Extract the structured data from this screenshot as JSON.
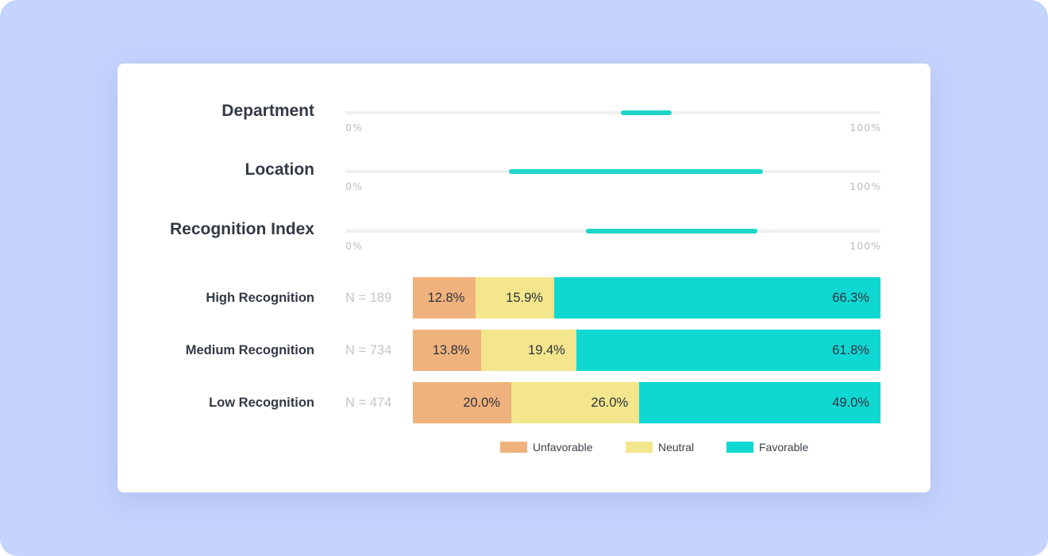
{
  "colors": {
    "background": "#c5d4fd",
    "card": "#ffffff",
    "range_fill": "#1fd5c9",
    "track": "#eff0f2",
    "unfavorable": "#f0b27c",
    "neutral": "#f3e68c",
    "favorable": "#0fd8d3"
  },
  "chart_data": [
    {
      "type": "range",
      "xlim": [
        0,
        100
      ],
      "tick_labels": [
        "0%",
        "100%"
      ],
      "rows": [
        {
          "label": "Department",
          "min": 51.5,
          "max": 61
        },
        {
          "label": "Location",
          "min": 30.5,
          "max": 78
        },
        {
          "label": "Recognition Index",
          "min": 45,
          "max": 77
        }
      ]
    },
    {
      "type": "bar",
      "stacked": true,
      "orientation": "horizontal",
      "categories": [
        "High Recognition",
        "Medium Recognition",
        "Low Recognition"
      ],
      "counts": [
        "N = 189",
        "N = 734",
        "N = 474"
      ],
      "series": [
        {
          "name": "Unfavorable",
          "values": [
            12.8,
            13.8,
            20.0
          ],
          "labels": [
            "12.8%",
            "13.8%",
            "20.0%"
          ]
        },
        {
          "name": "Neutral",
          "values": [
            15.9,
            19.4,
            26.0
          ],
          "labels": [
            "15.9%",
            "19.4%",
            "26.0%"
          ]
        },
        {
          "name": "Favorable",
          "values": [
            66.3,
            61.8,
            49.0
          ],
          "labels": [
            "66.3%",
            "61.8%",
            "49.0%"
          ]
        }
      ],
      "legend_position": "bottom"
    }
  ]
}
